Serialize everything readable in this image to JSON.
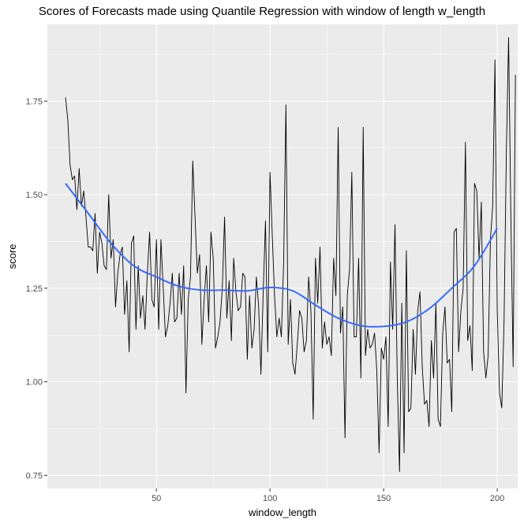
{
  "chart_data": {
    "type": "line",
    "title": "Scores of Forecasts made using Quantile Regression with window of length w_length",
    "xlabel": "window_length",
    "ylabel": "score",
    "xlim": [
      2,
      209
    ],
    "ylim": [
      0.715,
      1.955
    ],
    "x_ticks": [
      50,
      100,
      150,
      200
    ],
    "y_ticks": [
      0.75,
      1.0,
      1.25,
      1.5,
      1.75
    ],
    "x_tick_labels": [
      "50",
      "100",
      "150",
      "200"
    ],
    "y_tick_labels": [
      "0.75",
      "1.00",
      "1.25",
      "1.50",
      "1.75"
    ],
    "grid": true,
    "background": "#EBEBEB",
    "grid_color": "#FFFFFF",
    "series": [
      {
        "style": "line",
        "color": "#000000",
        "x_start": 10,
        "x_step": 1,
        "y": [
          1.76,
          1.7,
          1.58,
          1.54,
          1.55,
          1.46,
          1.57,
          1.47,
          1.51,
          1.44,
          1.36,
          1.36,
          1.35,
          1.45,
          1.29,
          1.4,
          1.37,
          1.31,
          1.3,
          1.5,
          1.33,
          1.38,
          1.2,
          1.29,
          1.34,
          1.36,
          1.18,
          1.27,
          1.08,
          1.37,
          1.39,
          1.14,
          1.31,
          1.17,
          1.23,
          1.14,
          1.29,
          1.4,
          1.22,
          1.2,
          1.38,
          1.14,
          1.38,
          1.25,
          1.12,
          1.15,
          1.21,
          1.29,
          1.16,
          1.17,
          1.29,
          1.18,
          1.31,
          0.97,
          1.22,
          1.28,
          1.59,
          1.44,
          1.29,
          1.34,
          1.1,
          1.22,
          1.31,
          1.16,
          1.4,
          1.33,
          1.09,
          1.12,
          1.16,
          1.25,
          1.44,
          1.17,
          1.27,
          1.11,
          1.33,
          1.24,
          1.19,
          1.2,
          1.29,
          1.28,
          1.06,
          1.23,
          1.09,
          1.14,
          1.28,
          1.2,
          1.02,
          1.24,
          1.43,
          1.08,
          1.56,
          1.39,
          1.23,
          1.12,
          1.17,
          1.12,
          1.32,
          1.74,
          1.1,
          1.22,
          1.05,
          1.02,
          1.1,
          1.19,
          1.17,
          1.08,
          1.11,
          1.28,
          1.19,
          0.9,
          1.33,
          1.21,
          1.36,
          1.09,
          1.16,
          1.1,
          1.12,
          1.07,
          1.33,
          1.23,
          1.68,
          1.13,
          1.2,
          0.85,
          1.23,
          1.3,
          1.56,
          1.12,
          1.12,
          1.33,
          1.01,
          1.68,
          1.07,
          1.14,
          1.09,
          1.1,
          1.13,
          1.03,
          0.81,
          1.09,
          1.06,
          1.12,
          0.88,
          1.32,
          1.14,
          1.42,
          1.01,
          0.76,
          1.21,
          0.81,
          1.35,
          0.92,
          0.93,
          1.14,
          1.02,
          1.19,
          1.24,
          1.04,
          0.94,
          0.95,
          0.88,
          1.11,
          1.01,
          1.21,
          0.9,
          0.88,
          1.13,
          1.2,
          1.05,
          1.06,
          0.92,
          1.4,
          1.41,
          1.08,
          1.19,
          1.25,
          1.64,
          1.11,
          1.15,
          1.03,
          1.53,
          1.51,
          1.33,
          1.48,
          1.08,
          1.01,
          1.07,
          1.38,
          1.47,
          1.86,
          1.19,
          0.97,
          0.93,
          1.16,
          1.61,
          1.92,
          1.44,
          1.04,
          1.82
        ]
      },
      {
        "style": "smooth",
        "color": "#3366FF",
        "x": [
          10,
          20,
          30,
          40,
          50,
          60,
          70,
          80,
          90,
          100,
          110,
          120,
          130,
          140,
          150,
          160,
          170,
          180,
          190,
          200
        ],
        "y": [
          1.53,
          1.45,
          1.37,
          1.31,
          1.28,
          1.255,
          1.245,
          1.245,
          1.243,
          1.252,
          1.243,
          1.205,
          1.17,
          1.15,
          1.148,
          1.16,
          1.195,
          1.25,
          1.31,
          1.41
        ]
      }
    ]
  }
}
